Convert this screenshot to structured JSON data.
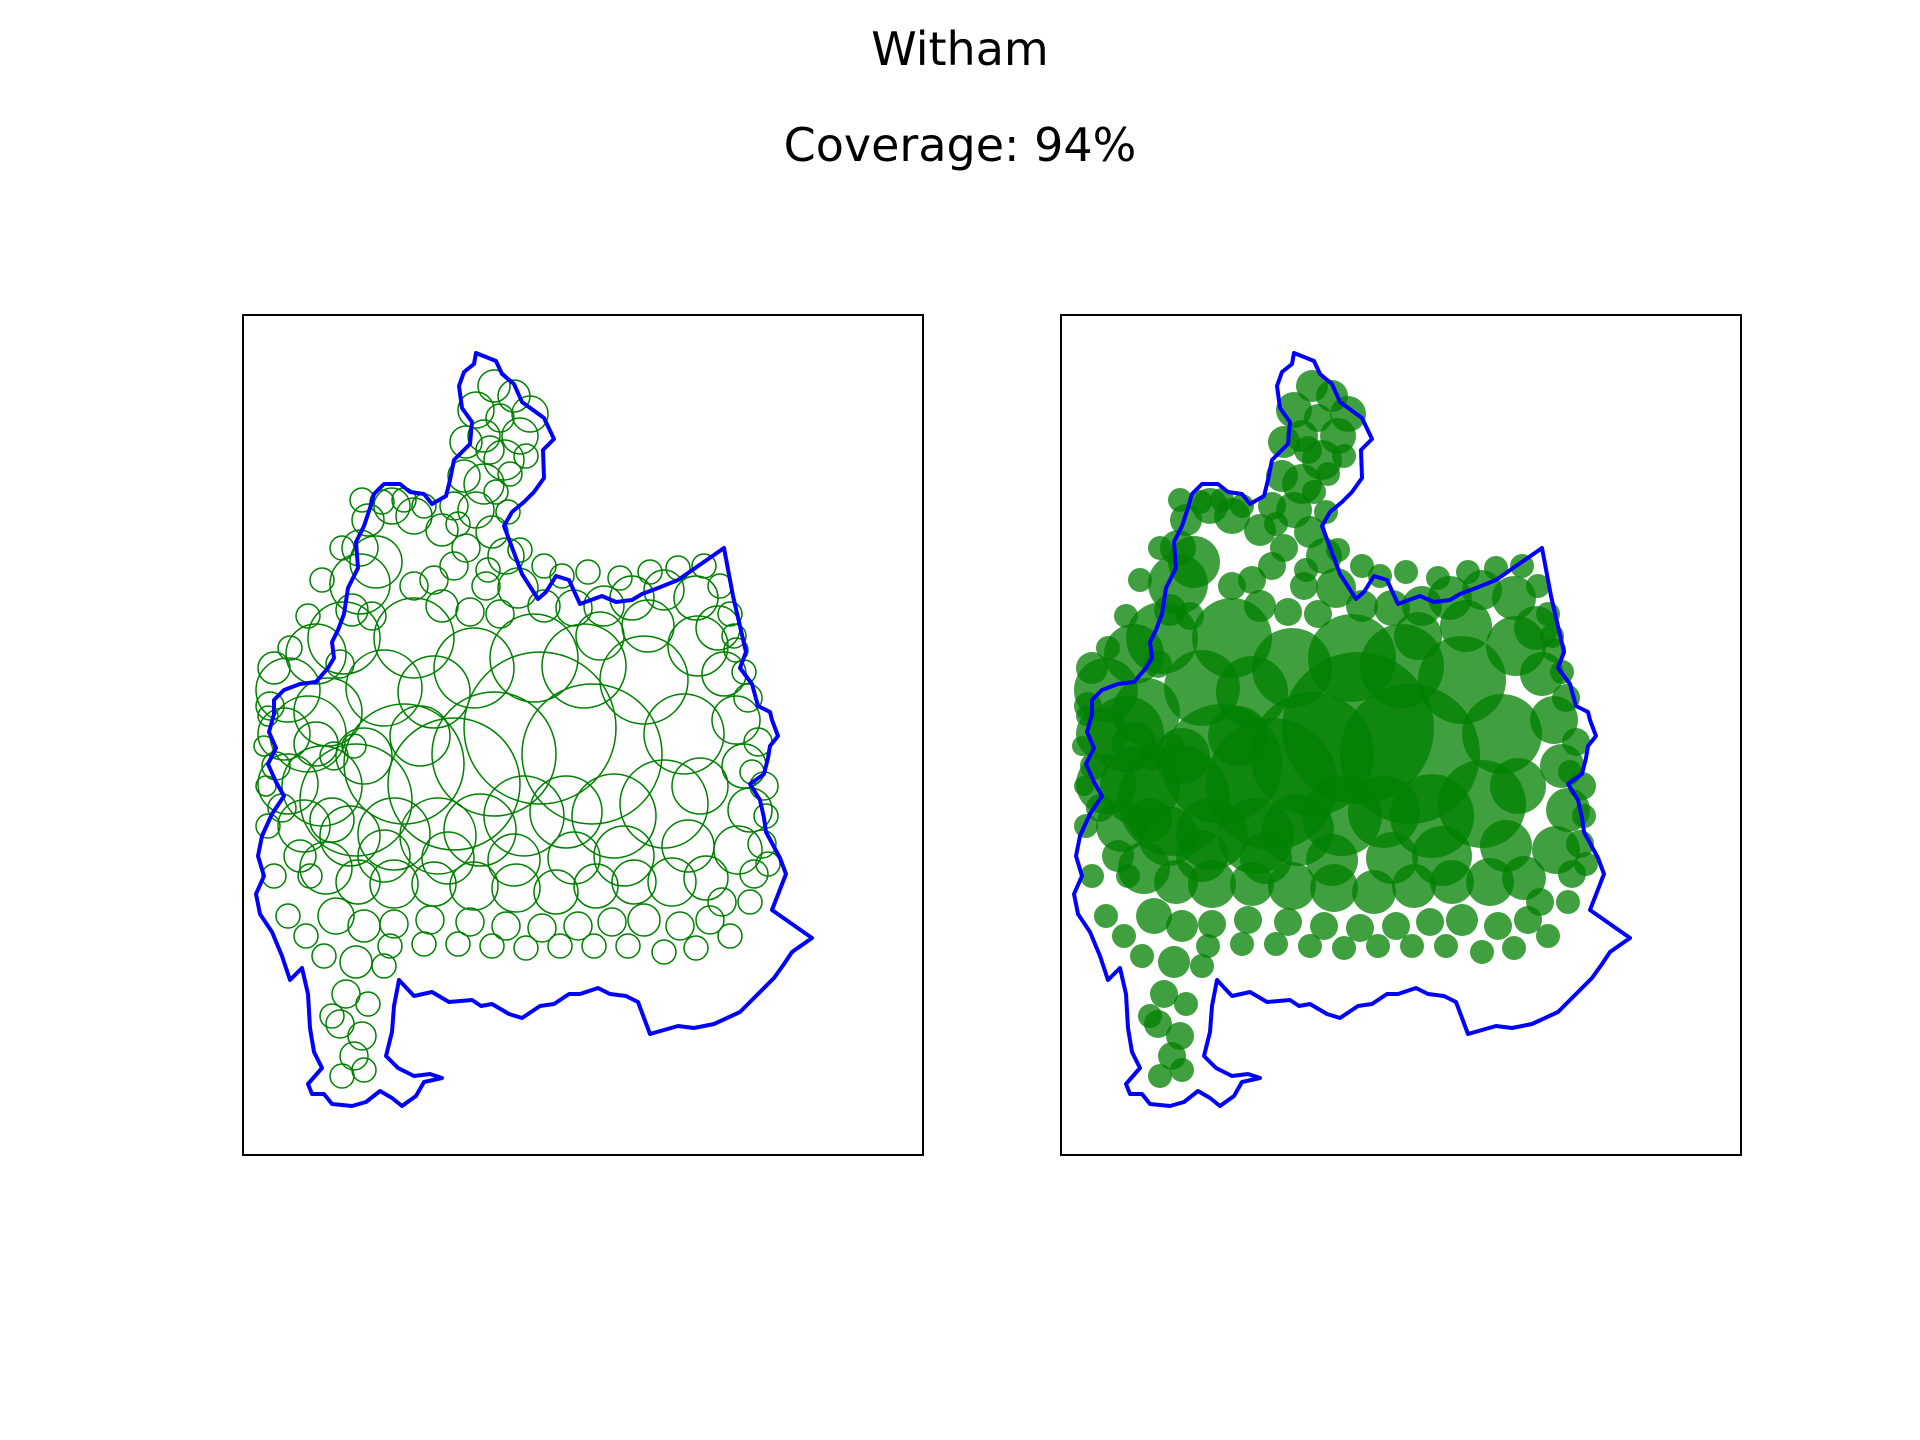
{
  "figure": {
    "title": "Witham",
    "subtitle": "Coverage: 94%"
  },
  "colors": {
    "boundary": "#0000ff",
    "circle": "#008000",
    "filled_circle": "#008000",
    "background": "#ffffff",
    "frame": "#000000"
  },
  "panels": [
    {
      "name": "outline-circles",
      "style": "outline"
    },
    {
      "name": "filled-circles",
      "style": "filled",
      "opacity": 0.75
    }
  ],
  "coverage_percent": 94
}
